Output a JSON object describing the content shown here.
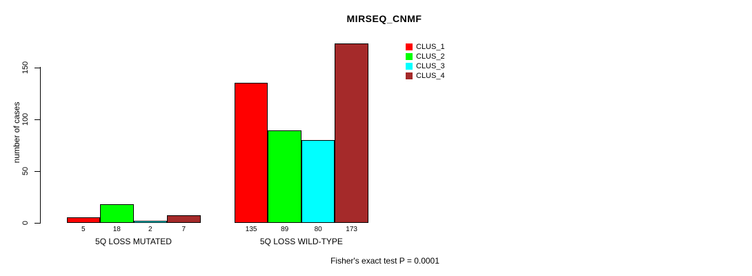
{
  "chart_data": {
    "type": "bar",
    "title": "MIRSEQ_CNMF",
    "ylabel": "number of cases",
    "xlabel": "",
    "categories": [
      "5Q LOSS MUTATED",
      "5Q LOSS WILD-TYPE"
    ],
    "series": [
      {
        "name": "CLUS_1",
        "color": "#FF0000",
        "values": [
          5,
          135
        ]
      },
      {
        "name": "CLUS_2",
        "color": "#00FF00",
        "values": [
          18,
          89
        ]
      },
      {
        "name": "CLUS_3",
        "color": "#00FFFF",
        "values": [
          2,
          80
        ]
      },
      {
        "name": "CLUS_4",
        "color": "#A52A2A",
        "values": [
          7,
          173
        ]
      }
    ],
    "bar_value_labels": [
      [
        "5",
        "18",
        "2",
        "7"
      ],
      [
        "135",
        "89",
        "80",
        "173"
      ]
    ],
    "yticks": [
      0,
      50,
      100,
      150
    ],
    "ylim": [
      0,
      175
    ],
    "grid": false,
    "legend_position": "top-right-inside",
    "annotation": "Fisher's exact test P = 0.0001"
  },
  "colors": {
    "background": "#FFFFFF",
    "axis": "#000000",
    "text": "#000000"
  }
}
